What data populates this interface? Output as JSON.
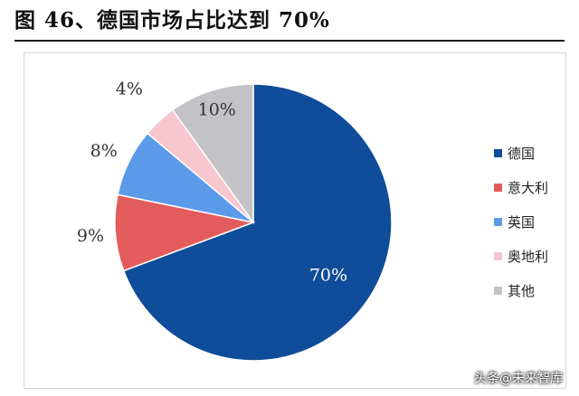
{
  "title": "图 46、德国市场占比达到 70%",
  "watermark": "头条@未来智库",
  "chart_data": {
    "type": "pie",
    "title": "",
    "categories": [
      "德国",
      "意大利",
      "英国",
      "奥地利",
      "其他"
    ],
    "values": [
      70,
      9,
      8,
      4,
      10
    ],
    "labels": [
      "70%",
      "9%",
      "8%",
      "4%",
      "10%"
    ],
    "colors": [
      "#0f4c99",
      "#e35c5c",
      "#5b9ae8",
      "#f7c6cf",
      "#c3c3c7"
    ],
    "label_colors": [
      "#ffffff",
      "#333333",
      "#333333",
      "#333333",
      "#333333"
    ],
    "legend_position": "right"
  }
}
